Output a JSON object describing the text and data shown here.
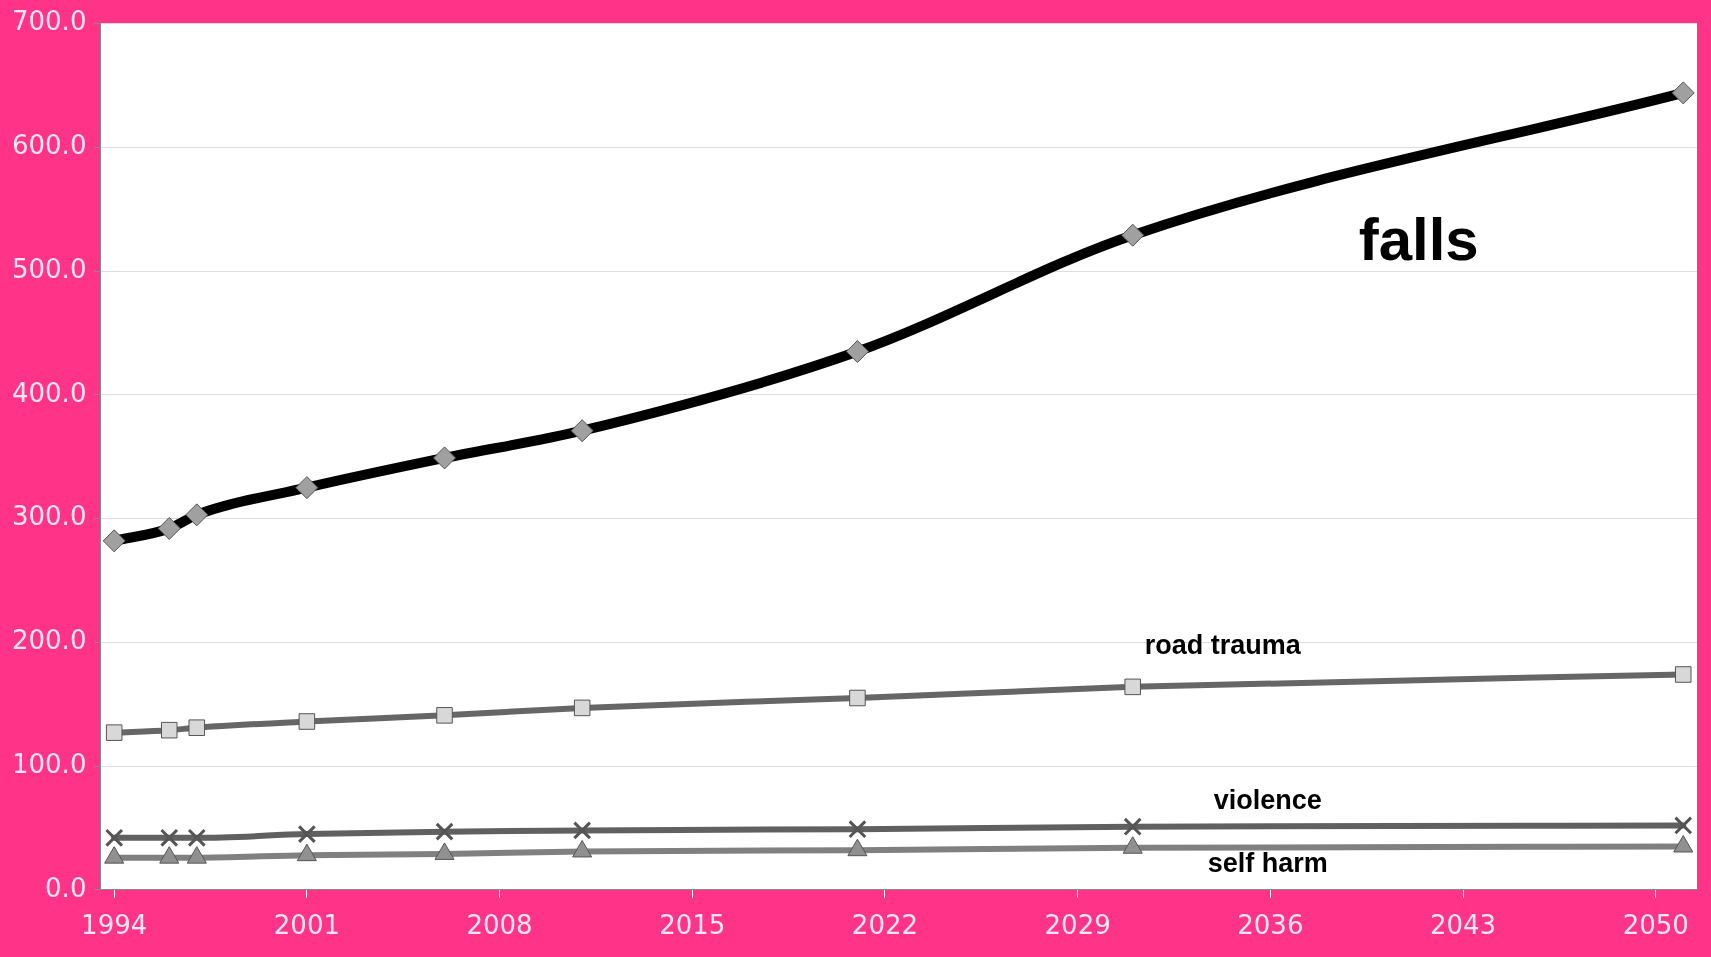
{
  "chart_data": {
    "type": "line",
    "x": [
      1994,
      1996,
      1997,
      2001,
      2006,
      2011,
      2021,
      2031,
      2051
    ],
    "xlim": [
      1993.5,
      2051.5
    ],
    "xticks": [
      1994,
      2001,
      2008,
      2015,
      2022,
      2029,
      2036,
      2043,
      2050
    ],
    "ylim": [
      0,
      700
    ],
    "yticks": [
      {
        "value": 0,
        "label": "0.0"
      },
      {
        "value": 100,
        "label": "100.0"
      },
      {
        "value": 200,
        "label": "200.0"
      },
      {
        "value": 300,
        "label": "300.0"
      },
      {
        "value": 400,
        "label": "400.0"
      },
      {
        "value": 500,
        "label": "500.0"
      },
      {
        "value": 600,
        "label": "600.0"
      },
      {
        "value": 700,
        "label": "700.0"
      }
    ],
    "grid": "y",
    "legend": false,
    "series": [
      {
        "name": "falls",
        "color": "#000000",
        "marker": "diamond",
        "values": [
          282,
          292,
          303,
          325,
          349,
          371,
          435,
          529,
          644
        ]
      },
      {
        "name": "road trauma",
        "color": "#666666",
        "marker": "square",
        "values": [
          127,
          129,
          131,
          136,
          141,
          147,
          155,
          164,
          174
        ]
      },
      {
        "name": "violence",
        "color": "#606060",
        "marker": "cross",
        "values": [
          42,
          42,
          42,
          45,
          47,
          48,
          49,
          51,
          52
        ]
      },
      {
        "name": "self harm",
        "color": "#808080",
        "marker": "triangle",
        "values": [
          26,
          26,
          26,
          28,
          29,
          31,
          32,
          34,
          35
        ]
      }
    ]
  }
}
